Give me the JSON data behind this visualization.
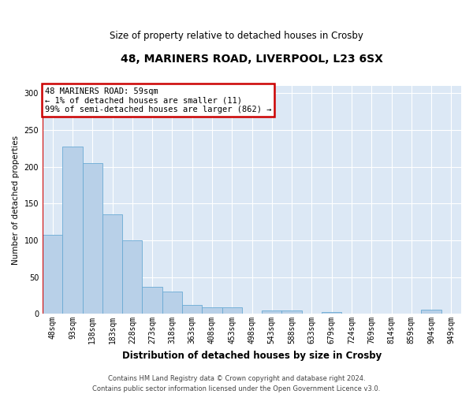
{
  "title_line1": "48, MARINERS ROAD, LIVERPOOL, L23 6SX",
  "title_line2": "Size of property relative to detached houses in Crosby",
  "xlabel": "Distribution of detached houses by size in Crosby",
  "ylabel": "Number of detached properties",
  "annotation_text": "48 MARINERS ROAD: 59sqm\n← 1% of detached houses are smaller (11)\n99% of semi-detached houses are larger (862) →",
  "footer": "Contains HM Land Registry data © Crown copyright and database right 2024.\nContains public sector information licensed under the Open Government Licence v3.0.",
  "categories": [
    "48sqm",
    "93sqm",
    "138sqm",
    "183sqm",
    "228sqm",
    "273sqm",
    "318sqm",
    "363sqm",
    "408sqm",
    "453sqm",
    "498sqm",
    "543sqm",
    "588sqm",
    "633sqm",
    "679sqm",
    "724sqm",
    "769sqm",
    "814sqm",
    "859sqm",
    "904sqm",
    "949sqm"
  ],
  "values": [
    107,
    228,
    205,
    135,
    100,
    37,
    30,
    12,
    9,
    9,
    0,
    4,
    4,
    0,
    2,
    0,
    0,
    0,
    0,
    5,
    0
  ],
  "bar_color": "#b8d0e8",
  "bar_edge_color": "#6aaad4",
  "highlight_line_color": "#cc0000",
  "annotation_box_facecolor": "#ffffff",
  "annotation_box_edgecolor": "#cc0000",
  "background_color": "#dce8f5",
  "grid_color": "#ffffff",
  "ylim": [
    0,
    310
  ],
  "yticks": [
    0,
    50,
    100,
    150,
    200,
    250,
    300
  ],
  "title1_fontsize": 10,
  "title2_fontsize": 8.5,
  "xlabel_fontsize": 8.5,
  "ylabel_fontsize": 7.5,
  "tick_fontsize": 7,
  "annotation_fontsize": 7.5,
  "footer_fontsize": 6
}
